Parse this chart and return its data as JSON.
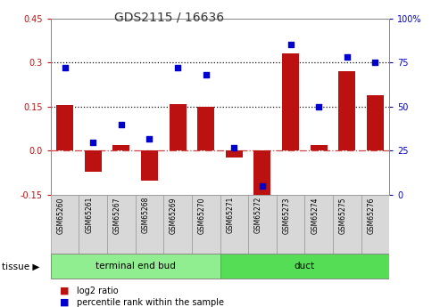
{
  "title": "GDS2115 / 16636",
  "samples": [
    "GSM65260",
    "GSM65261",
    "GSM65267",
    "GSM65268",
    "GSM65269",
    "GSM65270",
    "GSM65271",
    "GSM65272",
    "GSM65273",
    "GSM65274",
    "GSM65275",
    "GSM65276"
  ],
  "log2_ratio": [
    0.155,
    -0.072,
    0.02,
    -0.1,
    0.16,
    0.15,
    -0.022,
    -0.162,
    0.33,
    0.02,
    0.27,
    0.19
  ],
  "percentile": [
    72,
    30,
    40,
    32,
    72,
    68,
    27,
    5,
    85,
    50,
    78,
    75
  ],
  "tissue_groups": [
    {
      "label": "terminal end bud",
      "start": 0,
      "end": 6,
      "color": "#90ee90"
    },
    {
      "label": "duct",
      "start": 6,
      "end": 12,
      "color": "#55dd55"
    }
  ],
  "ylim_left": [
    -0.15,
    0.45
  ],
  "ylim_right": [
    0,
    100
  ],
  "yticks_left": [
    -0.15,
    0.0,
    0.15,
    0.3,
    0.45
  ],
  "yticks_right": [
    0,
    25,
    50,
    75,
    100
  ],
  "hlines": [
    0.15,
    0.3
  ],
  "bar_color": "#bb1111",
  "scatter_color": "#0000cc",
  "zero_line_color": "#cc4444",
  "dotted_line_color": "#111111",
  "bg_color": "#ffffff",
  "bar_width": 0.6,
  "legend_red_label": "log2 ratio",
  "legend_blue_label": "percentile rank within the sample",
  "tissue_label": "tissue"
}
